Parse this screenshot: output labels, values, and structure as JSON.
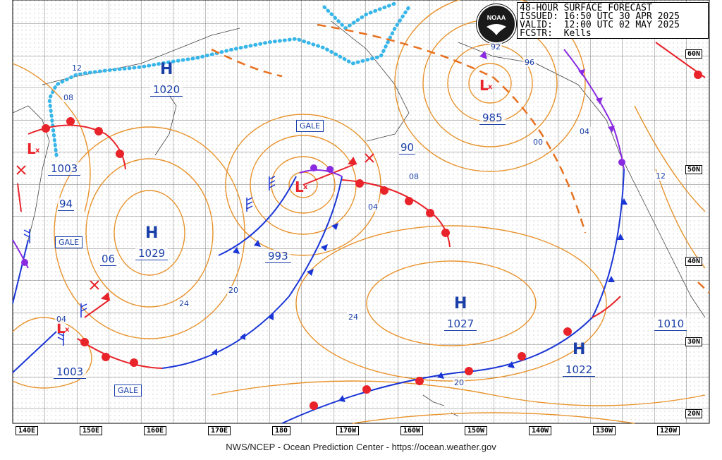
{
  "header": {
    "title": "48-HOUR SURFACE FORECAST",
    "issued": "ISSUED: 16:50 UTC 30 APR 2025",
    "valid": "VALID:  12:00 UTC 02 MAY 2025",
    "forecaster": "FCSTR:  Kells"
  },
  "logo": {
    "text": "NOAA"
  },
  "footer": "NWS/NCEP - Ocean Prediction Center - https://ocean.weather.gov",
  "lat_labels": [
    "60N",
    "50N",
    "40N",
    "30N",
    "20N"
  ],
  "lon_labels": [
    "140E",
    "150E",
    "160E",
    "170E",
    "180",
    "170W",
    "160W",
    "150W",
    "140W",
    "130W",
    "120W"
  ],
  "pressure_systems": [
    {
      "type": "H",
      "value": "1020"
    },
    {
      "type": "H",
      "value": "1029"
    },
    {
      "type": "H",
      "value": "1027"
    },
    {
      "type": "H",
      "value": "1022"
    },
    {
      "type": "L",
      "value": "1003"
    },
    {
      "type": "L",
      "value": "993"
    },
    {
      "type": "L",
      "value": "985"
    },
    {
      "type": "L",
      "value": "1003"
    },
    {
      "type": "L",
      "value": "1010"
    }
  ],
  "warnings": [
    "GALE",
    "GALE",
    "GALE"
  ],
  "isobar_labels": [
    "12",
    "08",
    "94",
    "06",
    "24",
    "20",
    "04",
    "08",
    "90",
    "92",
    "96",
    "00",
    "04",
    "12",
    "24",
    "20",
    "04"
  ],
  "colors": {
    "isobar": "#e8932c",
    "warm_front": "#e8232a",
    "cold_front": "#1a35d6",
    "occluded": "#8a2be2",
    "ice_edge": "#37b6ea",
    "grid": "#2a2a2a",
    "text_blue": "#1a3fa8"
  }
}
